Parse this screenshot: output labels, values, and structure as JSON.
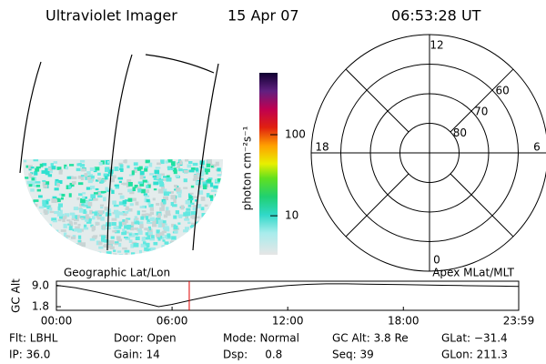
{
  "header": {
    "instrument": "Ultraviolet Imager",
    "date": "15 Apr 07",
    "time": "06:53:28 UT"
  },
  "colorbar": {
    "label": "photon cm⁻²s⁻¹",
    "log": true,
    "clim": [
      3.3,
      580
    ],
    "ticks": [
      10,
      100
    ]
  },
  "polar": {
    "mlt_labels": [
      12,
      6,
      0,
      18
    ],
    "lat_rings": [
      80,
      70,
      60
    ],
    "lat_min": 50
  },
  "altitude_plot": {
    "ylabel": "GC Alt",
    "left_label": "Geographic Lat/Lon",
    "right_label": "Apex MLat/MLT",
    "xlim": [
      0,
      23.983
    ],
    "ylim": [
      0.55,
      10.6
    ],
    "xticks": [
      {
        "value": 0,
        "label": "00:00"
      },
      {
        "value": 6,
        "label": "06:00"
      },
      {
        "value": 12,
        "label": "12:00"
      },
      {
        "value": 18,
        "label": "18:00"
      },
      {
        "value": 23.983,
        "label": "23:59"
      }
    ],
    "yticks": [
      {
        "value": 9,
        "label": "9.0"
      },
      {
        "value": 1.8,
        "label": "1.8"
      }
    ],
    "x": [
      0,
      1,
      2,
      3,
      4,
      5,
      5.3,
      6,
      7,
      8,
      9,
      10,
      11,
      12,
      13,
      14,
      15,
      16,
      17,
      18,
      19,
      20,
      21,
      22,
      23,
      23.983
    ],
    "values": [
      9.2,
      8.3,
      7.0,
      5.5,
      3.9,
      2.3,
      1.8,
      2.6,
      4.1,
      5.5,
      6.7,
      7.7,
      8.5,
      9.1,
      9.5,
      9.7,
      9.7,
      9.6,
      9.5,
      9.4,
      9.3,
      9.2,
      9.1,
      9.0,
      8.9,
      8.8
    ],
    "marker_hours": 6.891
  },
  "footer": {
    "rows": [
      [
        "Flt: LBHL",
        "Door: Open",
        "Mode: Normal",
        "GC Alt: 3.8 Re",
        "GLat: −31.4"
      ],
      [
        "IP: 36.0",
        "Gain: 14",
        "Dsp:     0.8",
        "Seq: 39",
        "GLon: 211.3"
      ]
    ]
  }
}
